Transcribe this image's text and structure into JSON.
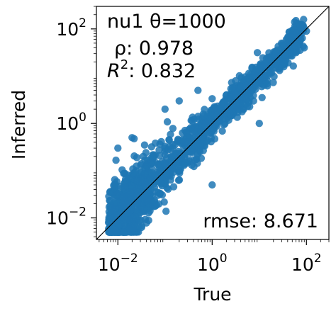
{
  "chart_data": {
    "type": "scatter",
    "title": "",
    "xlabel": "True",
    "ylabel": "Inferred",
    "xscale": "log",
    "yscale": "log",
    "xlim": [
      0.0035,
      300
    ],
    "ylim": [
      0.0035,
      300
    ],
    "x_ticks": [
      {
        "base": "10",
        "exp": "−2",
        "value": 0.01
      },
      {
        "base": "10",
        "exp": "0",
        "value": 1
      },
      {
        "base": "10",
        "exp": "2",
        "value": 100
      }
    ],
    "y_ticks": [
      {
        "base": "10",
        "exp": "−2",
        "value": 0.01
      },
      {
        "base": "10",
        "exp": "0",
        "value": 1
      },
      {
        "base": "10",
        "exp": "2",
        "value": 100
      }
    ],
    "reference_line": "y = x",
    "point_color": "#1f77b4",
    "grid": false,
    "annotations": {
      "model": "nu1 θ=1000",
      "rho": "ρ: 0.978",
      "r2_symbol": "R",
      "r2_exp": "2",
      "r2_value": ": 0.832",
      "rmse": "rmse: 8.671"
    },
    "points_note": "approx. 1500 points clustered tightly along y = x",
    "points": [
      [
        0.01,
        0.02
      ],
      [
        0.012,
        0.008
      ],
      [
        0.015,
        0.03
      ],
      [
        0.02,
        0.015
      ],
      [
        0.03,
        0.05
      ],
      [
        0.05,
        0.04
      ],
      [
        0.08,
        0.1
      ],
      [
        0.1,
        0.07
      ],
      [
        0.15,
        0.2
      ],
      [
        0.2,
        0.15
      ],
      [
        0.3,
        0.35
      ],
      [
        0.5,
        0.4
      ],
      [
        0.8,
        1.0
      ],
      [
        1.0,
        0.9
      ],
      [
        1.5,
        2.0
      ],
      [
        2.0,
        1.8
      ],
      [
        3.0,
        3.5
      ],
      [
        5.0,
        4.5
      ],
      [
        8.0,
        10.0
      ],
      [
        10.0,
        9.0
      ],
      [
        15.0,
        20.0
      ],
      [
        20.0,
        18.0
      ],
      [
        30.0,
        40.0
      ],
      [
        50.0,
        45.0
      ],
      [
        80.0,
        100.0
      ],
      [
        100.0,
        90.0
      ],
      [
        0.01,
        0.3
      ],
      [
        0.02,
        0.5
      ],
      [
        0.2,
        3.0
      ],
      [
        0.1,
        2.0
      ],
      [
        0.5,
        5.0
      ],
      [
        1.0,
        0.05
      ],
      [
        10.0,
        1.0
      ],
      [
        60.0,
        150.0
      ],
      [
        90.0,
        40.0
      ]
    ]
  }
}
